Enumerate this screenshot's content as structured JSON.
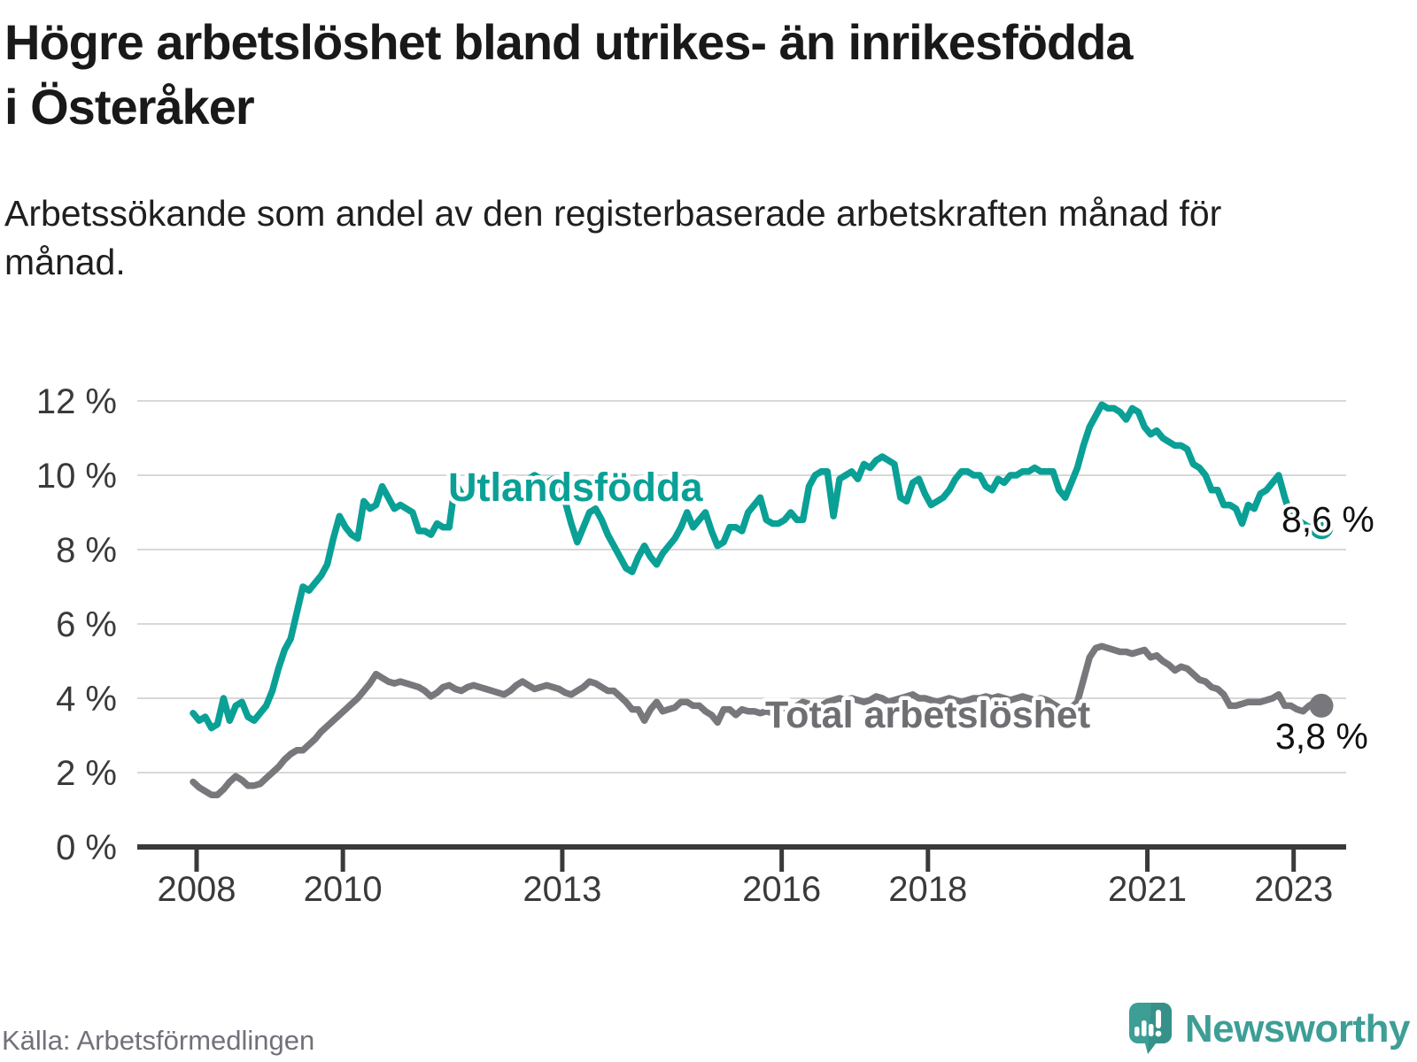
{
  "header": {
    "title": "Högre arbetslöshet bland utrikes- än inrikesfödda i Österåker",
    "subtitle": "Arbetssökande som andel av den registerbaserade arbetskraften månad för månad."
  },
  "footer": {
    "source": "Källa: Arbetsförmedlingen",
    "brand": "Newsworthy"
  },
  "colors": {
    "accent_teal": "#0aa096",
    "line_gray": "#78787c",
    "gray_label": "#6e6e73",
    "axis": "#3a3a3a",
    "grid": "#d8d8d8",
    "value_label": "#111111",
    "brand_teal": "#3d9e96"
  },
  "chart_data": {
    "type": "line",
    "title": "Högre arbetslöshet bland utrikes- än inrikesfödda i Österåker",
    "x_unit": "month",
    "x_range": [
      "2008-01",
      "2023-06"
    ],
    "ylim": [
      0,
      12.6
    ],
    "grid": true,
    "legend": "inline-labels",
    "y_ticks": [
      0,
      2,
      4,
      6,
      8,
      10,
      12
    ],
    "y_tick_labels": [
      "0 %",
      "2 %",
      "4 %",
      "6 %",
      "8 %",
      "10 %",
      "12 %"
    ],
    "x_ticks": [
      2008,
      2010,
      2013,
      2016,
      2018,
      2021,
      2023
    ],
    "x_tick_labels": [
      "2008",
      "2010",
      "2013",
      "2016",
      "2018",
      "2021",
      "2023"
    ],
    "series": [
      {
        "name": "Utlandsfödda",
        "color": "#0aa096",
        "end_label": "8,6 %",
        "end_value": 8.6,
        "values": [
          3.6,
          3.4,
          3.5,
          3.2,
          3.3,
          4.0,
          3.4,
          3.8,
          3.9,
          3.5,
          3.4,
          3.6,
          3.8,
          4.2,
          4.8,
          5.3,
          5.6,
          6.3,
          7.0,
          6.9,
          7.1,
          7.3,
          7.6,
          8.3,
          8.9,
          8.6,
          8.4,
          8.3,
          9.3,
          9.1,
          9.2,
          9.7,
          9.4,
          9.1,
          9.2,
          9.1,
          9.0,
          8.5,
          8.5,
          8.4,
          8.7,
          8.6,
          8.6,
          9.8,
          9.5,
          9.4,
          9.6,
          9.5,
          9.4,
          9.3,
          9.5,
          9.6,
          9.5,
          9.6,
          9.7,
          9.9,
          10.0,
          9.9,
          9.8,
          9.9,
          9.7,
          9.3,
          8.7,
          8.2,
          8.6,
          9.0,
          9.1,
          8.8,
          8.4,
          8.1,
          7.8,
          7.5,
          7.4,
          7.8,
          8.1,
          7.8,
          7.6,
          7.9,
          8.1,
          8.3,
          8.6,
          9.0,
          8.6,
          8.8,
          9.0,
          8.5,
          8.1,
          8.2,
          8.6,
          8.6,
          8.5,
          9.0,
          9.2,
          9.4,
          8.8,
          8.7,
          8.7,
          8.8,
          9.0,
          8.8,
          8.8,
          9.7,
          10.0,
          10.1,
          10.1,
          8.9,
          9.9,
          10.0,
          10.1,
          9.9,
          10.3,
          10.2,
          10.4,
          10.5,
          10.4,
          10.3,
          9.4,
          9.3,
          9.8,
          9.9,
          9.5,
          9.2,
          9.3,
          9.4,
          9.6,
          9.9,
          10.1,
          10.1,
          10.0,
          10.0,
          9.7,
          9.6,
          9.9,
          9.8,
          10.0,
          10.0,
          10.1,
          10.1,
          10.2,
          10.1,
          10.1,
          10.1,
          9.6,
          9.4,
          9.8,
          10.2,
          10.8,
          11.3,
          11.6,
          11.9,
          11.8,
          11.8,
          11.7,
          11.5,
          11.8,
          11.7,
          11.3,
          11.1,
          11.2,
          11.0,
          10.9,
          10.8,
          10.8,
          10.7,
          10.3,
          10.2,
          10.0,
          9.6,
          9.6,
          9.2,
          9.2,
          9.1,
          8.7,
          9.2,
          9.1,
          9.5,
          9.6,
          9.8,
          10.0,
          9.4,
          8.9,
          8.8,
          8.7,
          8.6,
          8.6,
          8.6
        ]
      },
      {
        "name": "Total arbetslöshet",
        "color": "#78787c",
        "end_label": "3,8 %",
        "end_value": 3.8,
        "values": [
          1.75,
          1.6,
          1.5,
          1.4,
          1.4,
          1.55,
          1.75,
          1.9,
          1.8,
          1.65,
          1.65,
          1.7,
          1.85,
          2.0,
          2.15,
          2.35,
          2.5,
          2.6,
          2.6,
          2.75,
          2.9,
          3.1,
          3.25,
          3.4,
          3.55,
          3.7,
          3.85,
          4.0,
          4.2,
          4.4,
          4.65,
          4.55,
          4.45,
          4.4,
          4.45,
          4.4,
          4.35,
          4.3,
          4.2,
          4.05,
          4.15,
          4.3,
          4.35,
          4.25,
          4.2,
          4.3,
          4.35,
          4.3,
          4.25,
          4.2,
          4.15,
          4.1,
          4.2,
          4.35,
          4.45,
          4.35,
          4.25,
          4.3,
          4.35,
          4.3,
          4.25,
          4.15,
          4.1,
          4.2,
          4.3,
          4.45,
          4.4,
          4.3,
          4.2,
          4.2,
          4.05,
          3.9,
          3.7,
          3.7,
          3.4,
          3.7,
          3.9,
          3.65,
          3.7,
          3.75,
          3.9,
          3.9,
          3.8,
          3.8,
          3.65,
          3.55,
          3.35,
          3.7,
          3.7,
          3.55,
          3.7,
          3.65,
          3.65,
          3.6,
          3.65,
          3.6,
          3.7,
          3.75,
          3.7,
          3.8,
          3.9,
          3.85,
          3.75,
          3.8,
          3.9,
          3.95,
          4.0,
          3.95,
          4.0,
          3.95,
          3.9,
          3.95,
          4.05,
          4.0,
          3.9,
          3.95,
          4.0,
          4.05,
          4.1,
          4.0,
          4.0,
          3.95,
          3.9,
          3.95,
          4.0,
          3.95,
          3.9,
          3.95,
          4.0,
          4.0,
          4.05,
          4.0,
          4.05,
          4.0,
          3.95,
          4.0,
          4.05,
          4.0,
          3.95,
          4.0,
          3.95,
          3.85,
          3.75,
          3.65,
          3.75,
          3.9,
          4.5,
          5.1,
          5.35,
          5.4,
          5.35,
          5.3,
          5.25,
          5.25,
          5.2,
          5.25,
          5.3,
          5.1,
          5.15,
          5.0,
          4.9,
          4.75,
          4.85,
          4.8,
          4.65,
          4.5,
          4.45,
          4.3,
          4.25,
          4.1,
          3.8,
          3.8,
          3.85,
          3.9,
          3.9,
          3.9,
          3.95,
          4.0,
          4.1,
          3.8,
          3.8,
          3.7,
          3.65,
          3.8,
          3.9,
          3.8
        ]
      }
    ]
  }
}
